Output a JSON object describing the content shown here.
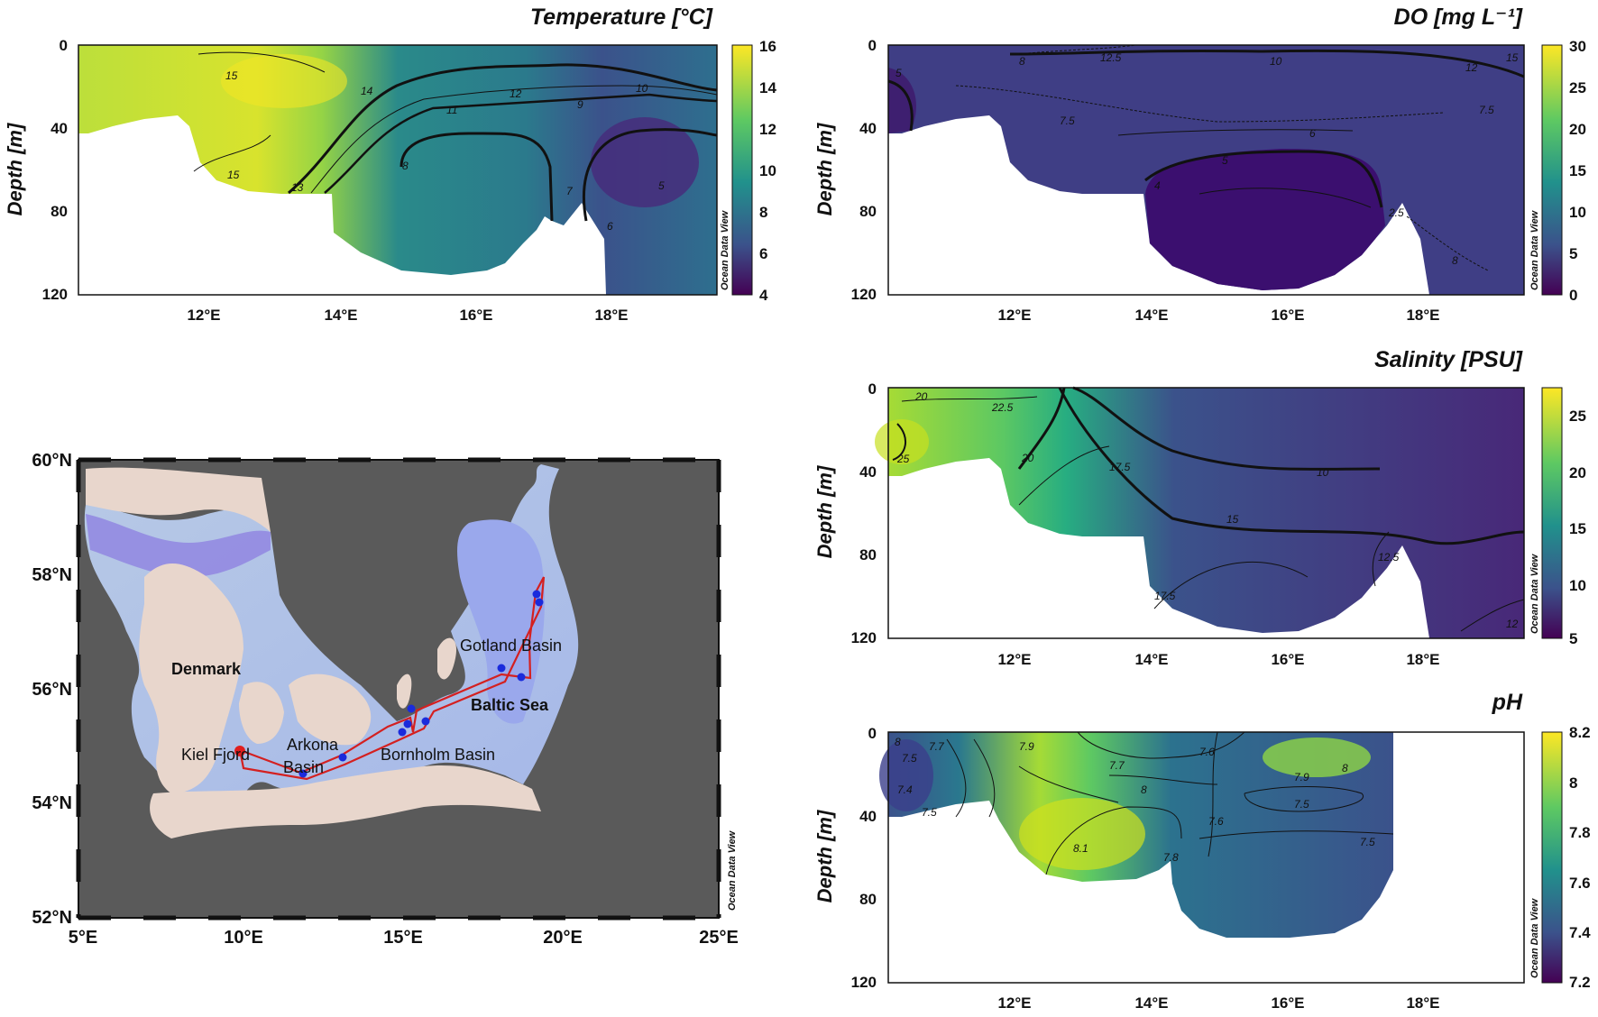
{
  "watermark": "Ocean Data View",
  "chart_data": [
    {
      "type": "heatmap",
      "title": "Temperature [°C]",
      "ylabel": "Depth [m]",
      "y_ticks": [
        "0",
        "40",
        "80",
        "120"
      ],
      "x_ticks": [
        "12°E",
        "14°E",
        "16°E",
        "18°E"
      ],
      "colorbar_ticks": [
        "16",
        "14",
        "12",
        "10",
        "8",
        "6",
        "4"
      ],
      "contour_labels": [
        "15",
        "14",
        "13",
        "12",
        "11",
        "10",
        "9",
        "8",
        "7",
        "6",
        "5",
        "15"
      ],
      "ylim": [
        0,
        120
      ],
      "xlim": [
        10.2,
        19.6
      ],
      "clim": [
        4,
        16
      ]
    },
    {
      "type": "heatmap",
      "title": "DO [mg L⁻¹]",
      "ylabel": "Depth [m]",
      "y_ticks": [
        "0",
        "40",
        "80",
        "120"
      ],
      "x_ticks": [
        "12°E",
        "14°E",
        "16°E",
        "18°E"
      ],
      "colorbar_ticks": [
        "30",
        "25",
        "20",
        "15",
        "10",
        "5",
        "0"
      ],
      "contour_labels": [
        "5",
        "12.5",
        "8",
        "10",
        "7.5",
        "6",
        "5",
        "4",
        "2.5",
        "8",
        "12",
        "15",
        "7.5"
      ],
      "ylim": [
        0,
        120
      ],
      "xlim": [
        10.2,
        19.6
      ],
      "clim": [
        0,
        30
      ]
    },
    {
      "type": "heatmap",
      "title": "Salinity [PSU]",
      "ylabel": "Depth [m]",
      "y_ticks": [
        "0",
        "40",
        "80",
        "120"
      ],
      "x_ticks": [
        "12°E",
        "14°E",
        "16°E",
        "18°E"
      ],
      "colorbar_ticks": [
        "25",
        "20",
        "15",
        "10",
        "5"
      ],
      "contour_labels": [
        "20",
        "22.5",
        "25",
        "20",
        "17.5",
        "10",
        "15",
        "12.5",
        "17.5",
        "12"
      ],
      "ylim": [
        0,
        120
      ],
      "xlim": [
        10.2,
        19.6
      ],
      "clim": [
        5,
        27
      ]
    },
    {
      "type": "heatmap",
      "title": "pH",
      "ylabel": "Depth [m]",
      "y_ticks": [
        "0",
        "40",
        "80",
        "120"
      ],
      "x_ticks": [
        "12°E",
        "14°E",
        "16°E",
        "18°E"
      ],
      "colorbar_ticks": [
        "8.2",
        "8",
        "7.8",
        "7.6",
        "7.4",
        "7.2"
      ],
      "contour_labels": [
        "8",
        "7.7",
        "7.5",
        "7.4",
        "7.5",
        "7.9",
        "7.7",
        "7.6",
        "8",
        "8",
        "7.9",
        "7.5",
        "7.5",
        "8.1",
        "7.8",
        "7.6"
      ],
      "ylim": [
        0,
        120
      ],
      "xlim": [
        10.2,
        19.6
      ],
      "clim": [
        7.2,
        8.2
      ]
    }
  ],
  "map": {
    "lat_ticks": [
      "60°N",
      "58°N",
      "56°N",
      "54°N",
      "52°N"
    ],
    "lon_ticks": [
      "5°E",
      "10°E",
      "15°E",
      "20°E",
      "25°E"
    ],
    "labels": {
      "denmark": "Denmark",
      "kiel": "Kiel Fjord",
      "arkona1": "Arkona",
      "arkona2": "Basin",
      "bornholm": "Bornholm Basin",
      "gotland": "Gotland Basin",
      "baltic": "Baltic Sea"
    },
    "colors": {
      "land": "#e8d6cc",
      "water": "#5a5a5a",
      "route": "#d42020",
      "station": "#1a2bdc"
    }
  }
}
